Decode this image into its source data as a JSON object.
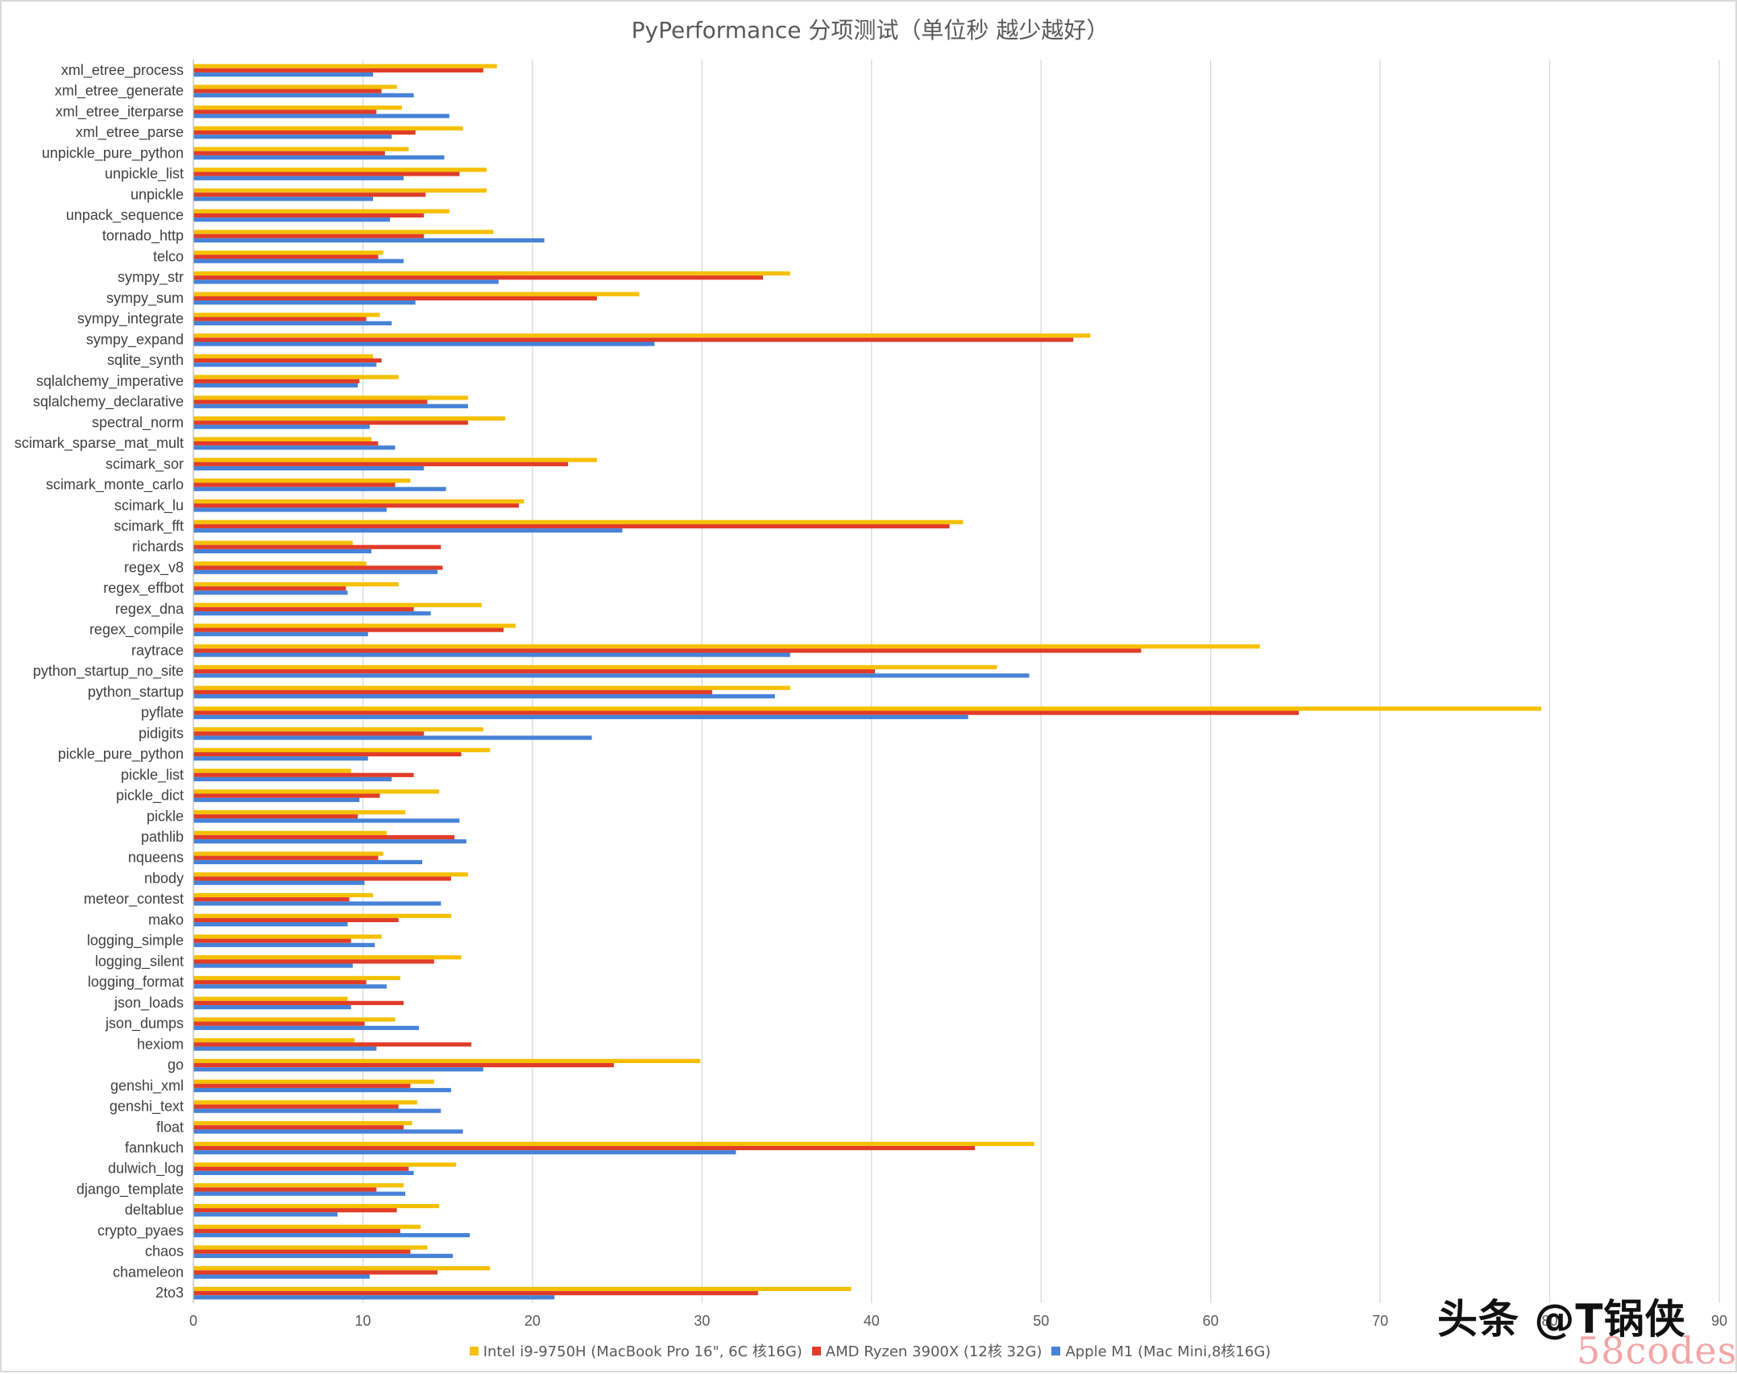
{
  "title": "PyPerformance 分项测试（单位秒 越少越好）",
  "watermark": {
    "toutiao": "头条 @T锅侠",
    "site": "58codes"
  },
  "chart_data": {
    "type": "bar",
    "orientation": "horizontal",
    "title": "PyPerformance 分项测试（单位秒 越少越好）",
    "xlim": [
      0,
      90
    ],
    "xticks": [
      0,
      10,
      20,
      30,
      40,
      50,
      60,
      70,
      80,
      90
    ],
    "grid": true,
    "legend_position": "bottom",
    "categories": [
      "xml_etree_process",
      "xml_etree_generate",
      "xml_etree_iterparse",
      "xml_etree_parse",
      "unpickle_pure_python",
      "unpickle_list",
      "unpickle",
      "unpack_sequence",
      "tornado_http",
      "telco",
      "sympy_str",
      "sympy_sum",
      "sympy_integrate",
      "sympy_expand",
      "sqlite_synth",
      "sqlalchemy_imperative",
      "sqlalchemy_declarative",
      "spectral_norm",
      "scimark_sparse_mat_mult",
      "scimark_sor",
      "scimark_monte_carlo",
      "scimark_lu",
      "scimark_fft",
      "richards",
      "regex_v8",
      "regex_effbot",
      "regex_dna",
      "regex_compile",
      "raytrace",
      "python_startup_no_site",
      "python_startup",
      "pyflate",
      "pidigits",
      "pickle_pure_python",
      "pickle_list",
      "pickle_dict",
      "pickle",
      "pathlib",
      "nqueens",
      "nbody",
      "meteor_contest",
      "mako",
      "logging_simple",
      "logging_silent",
      "logging_format",
      "json_loads",
      "json_dumps",
      "hexiom",
      "go",
      "genshi_xml",
      "genshi_text",
      "float",
      "fannkuch",
      "dulwich_log",
      "django_template",
      "deltablue",
      "crypto_pyaes",
      "chaos",
      "chameleon",
      "2to3"
    ],
    "series": [
      {
        "name": "Intel i9-9750H (MacBook Pro 16\", 6C 核16G)",
        "color": "#f5c000",
        "values": [
          17.9,
          12,
          12.3,
          15.9,
          12.7,
          17.3,
          17.3,
          15.1,
          17.7,
          11.2,
          35.2,
          26.3,
          11,
          52.9,
          10.6,
          12.1,
          16.2,
          18.4,
          10.5,
          23.8,
          12.8,
          19.5,
          45.4,
          9.4,
          10.2,
          12.1,
          17,
          19,
          62.9,
          47.4,
          35.2,
          79.5,
          17.1,
          17.5,
          9.3,
          14.5,
          12.5,
          11.4,
          11.2,
          16.2,
          10.6,
          15.2,
          11.1,
          15.8,
          12.2,
          9.1,
          11.9,
          9.5,
          29.9,
          14.2,
          13.2,
          12.9,
          49.6,
          15.5,
          12.4,
          14.5,
          13.4,
          13.8,
          17.5,
          38.8
        ]
      },
      {
        "name": "AMD Ryzen 3900X (12核 32G)",
        "color": "#e03c28",
        "values": [
          17.1,
          11.1,
          10.8,
          13.1,
          11.3,
          15.7,
          13.7,
          13.6,
          13.6,
          10.9,
          33.6,
          23.8,
          10.2,
          51.9,
          11.1,
          9.8,
          13.8,
          16.2,
          10.9,
          22.1,
          11.9,
          19.2,
          44.6,
          14.6,
          14.7,
          9,
          13,
          18.3,
          55.9,
          40.2,
          30.6,
          65.2,
          13.6,
          15.8,
          13,
          11,
          9.7,
          15.4,
          10.9,
          15.2,
          9.2,
          12.1,
          9.3,
          14.2,
          10.2,
          12.4,
          10.1,
          16.4,
          24.8,
          12.8,
          12.1,
          12.4,
          46.1,
          12.7,
          10.8,
          12,
          12.2,
          12.8,
          14.4,
          33.3
        ]
      },
      {
        "name": "Apple M1 (Mac Mini,8核16G)",
        "color": "#4682d8",
        "values": [
          10.6,
          13,
          15.1,
          11.7,
          14.8,
          12.4,
          10.6,
          11.6,
          20.7,
          12.4,
          18,
          13.1,
          11.7,
          27.2,
          10.8,
          9.7,
          16.2,
          10.4,
          11.9,
          13.6,
          14.9,
          11.4,
          25.3,
          10.5,
          14.4,
          9.1,
          14,
          10.3,
          35.2,
          49.3,
          34.3,
          45.7,
          23.5,
          10.3,
          11.7,
          9.8,
          15.7,
          16.1,
          13.5,
          10.1,
          14.6,
          9.1,
          10.7,
          9.4,
          11.4,
          9.3,
          13.3,
          10.8,
          17.1,
          15.2,
          14.6,
          15.9,
          32,
          13,
          12.5,
          8.5,
          16.3,
          15.3,
          10.4,
          21.3
        ]
      }
    ]
  }
}
